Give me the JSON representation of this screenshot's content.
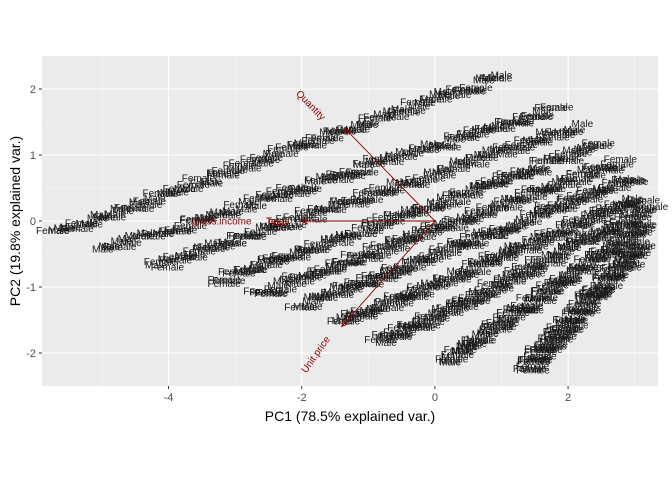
{
  "chart_data": {
    "type": "scatter",
    "title": "",
    "xlabel": "PC1 (78.5% explained var.)",
    "ylabel": "PC2 (19.8% explained var.)",
    "xlim": [
      -5.9,
      3.35
    ],
    "ylim": [
      -2.5,
      2.5
    ],
    "x_ticks": [
      -4,
      -2,
      0,
      2
    ],
    "y_ticks": [
      -2,
      -1,
      0,
      1,
      2
    ],
    "grid": true,
    "background": "#ebebeb",
    "point_label_values": [
      "Female",
      "Male"
    ],
    "point_label_color": "#1a1a1a",
    "arrow_color": "#8b0000",
    "bands": [
      {
        "x0": -5.7,
        "y0": -0.2,
        "x1": 1.0,
        "y1": 2.2
      },
      {
        "x0": -5.0,
        "y0": -0.45,
        "x1": 1.8,
        "y1": 1.7
      },
      {
        "x0": -4.2,
        "y0": -0.7,
        "x1": 2.2,
        "y1": 1.45
      },
      {
        "x0": -3.2,
        "y0": -0.9,
        "x1": 2.5,
        "y1": 1.15
      },
      {
        "x0": -2.6,
        "y0": -1.1,
        "x1": 2.8,
        "y1": 0.9
      },
      {
        "x0": -2.0,
        "y0": -1.3,
        "x1": 3.0,
        "y1": 0.65
      },
      {
        "x0": -1.4,
        "y0": -1.55,
        "x1": 3.1,
        "y1": 0.35
      },
      {
        "x0": -0.8,
        "y0": -1.85,
        "x1": 3.25,
        "y1": 0.2
      },
      {
        "x0": 0.2,
        "y0": -2.1,
        "x1": 3.2,
        "y1": -0.05
      },
      {
        "x0": 1.4,
        "y0": -2.25,
        "x1": 3.1,
        "y1": -0.35
      }
    ],
    "loadings": [
      {
        "name": "Quantity",
        "x": -1.35,
        "y": 1.4,
        "label_x": -1.9,
        "label_y": 1.72,
        "angle": 46
      },
      {
        "name": "gross.income",
        "x": -2.0,
        "y": 0.0,
        "label_x": -3.2,
        "label_y": -0.05,
        "angle": 0
      },
      {
        "name": "Tax",
        "x": -2.0,
        "y": 0.0,
        "label_x": -2.42,
        "label_y": -0.05,
        "angle": 0
      },
      {
        "name": "Total",
        "x": -2.0,
        "y": 0.0,
        "label_x": -2.38,
        "label_y": -0.05,
        "angle": 0
      },
      {
        "name": "cogs",
        "x": -2.0,
        "y": 0.0,
        "label_x": -2.34,
        "label_y": -0.05,
        "angle": 0
      },
      {
        "name": "Unit.price",
        "x": -1.4,
        "y": -1.6,
        "label_x": -1.75,
        "label_y": -2.05,
        "angle": -55
      }
    ]
  }
}
